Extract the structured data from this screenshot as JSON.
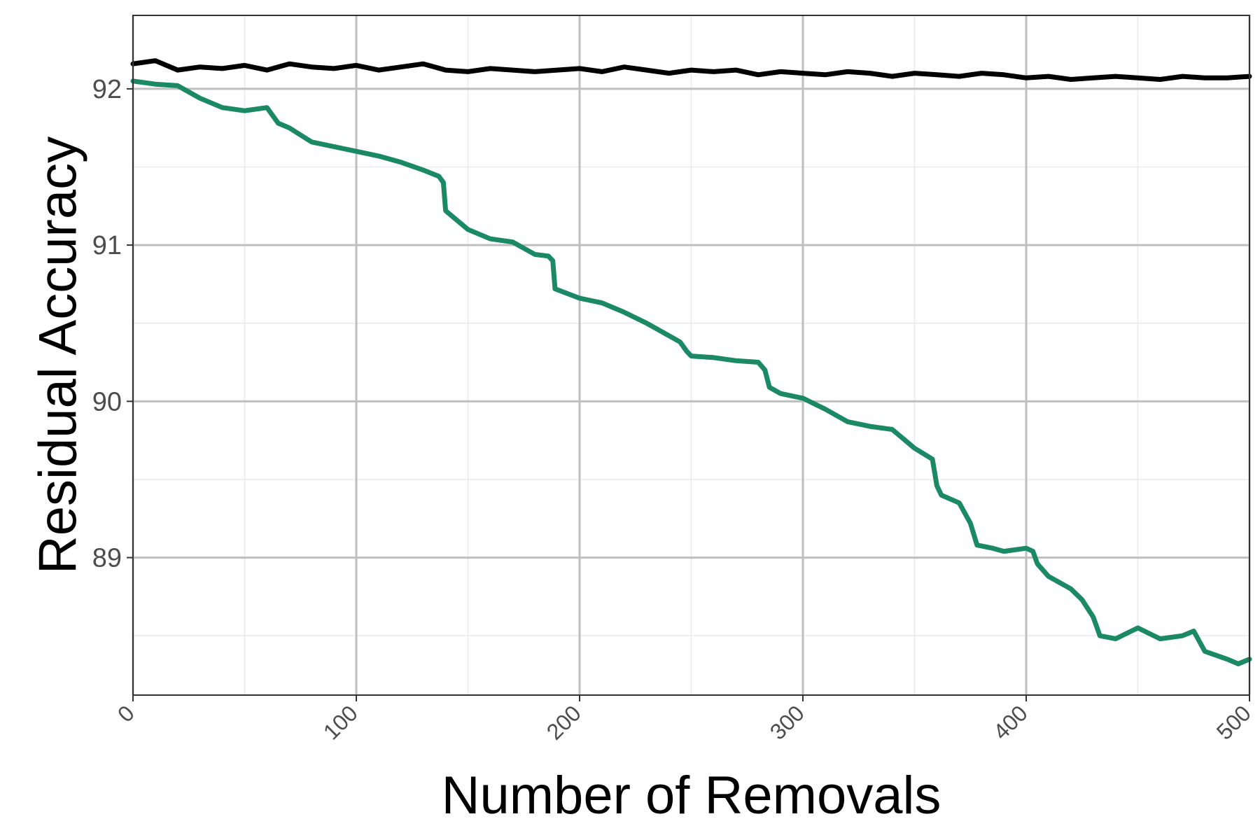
{
  "chart_data": {
    "type": "line",
    "title": "",
    "xlabel": "Number of Removals",
    "ylabel": "Residual Accuracy",
    "xlim": [
      0,
      500
    ],
    "ylim": [
      88.12,
      92.47
    ],
    "x_ticks": [
      0,
      100,
      200,
      300,
      400,
      500
    ],
    "x_tick_labels": [
      "0",
      "100",
      "200",
      "300",
      "400",
      "500"
    ],
    "y_ticks": [
      89,
      90,
      91,
      92
    ],
    "y_tick_labels": [
      "89",
      "90",
      "91",
      "92"
    ],
    "grid": true,
    "legend": "none",
    "series": [
      {
        "color": "#000000",
        "x": [
          0,
          10,
          20,
          30,
          40,
          50,
          60,
          70,
          80,
          90,
          100,
          110,
          120,
          130,
          140,
          150,
          160,
          170,
          180,
          190,
          200,
          210,
          220,
          230,
          240,
          250,
          260,
          270,
          280,
          290,
          300,
          310,
          320,
          330,
          340,
          350,
          360,
          370,
          380,
          390,
          400,
          410,
          420,
          430,
          440,
          450,
          460,
          470,
          480,
          490,
          500
        ],
        "y": [
          92.16,
          92.18,
          92.12,
          92.14,
          92.13,
          92.15,
          92.12,
          92.16,
          92.14,
          92.13,
          92.15,
          92.12,
          92.14,
          92.16,
          92.12,
          92.11,
          92.13,
          92.12,
          92.11,
          92.12,
          92.13,
          92.11,
          92.14,
          92.12,
          92.1,
          92.12,
          92.11,
          92.12,
          92.09,
          92.11,
          92.1,
          92.09,
          92.11,
          92.1,
          92.08,
          92.1,
          92.09,
          92.08,
          92.1,
          92.09,
          92.07,
          92.08,
          92.06,
          92.07,
          92.08,
          92.07,
          92.06,
          92.08,
          92.07,
          92.07,
          92.08
        ]
      },
      {
        "color": "#1b8a64",
        "x": [
          0,
          10,
          20,
          30,
          40,
          50,
          60,
          65,
          70,
          80,
          90,
          100,
          110,
          120,
          130,
          137,
          139,
          140,
          150,
          160,
          170,
          180,
          186,
          188,
          189,
          200,
          210,
          220,
          230,
          240,
          245,
          248,
          250,
          260,
          270,
          280,
          283,
          285,
          290,
          300,
          310,
          320,
          330,
          340,
          350,
          358,
          360,
          362,
          370,
          375,
          378,
          385,
          390,
          400,
          403,
          405,
          410,
          420,
          425,
          430,
          433,
          440,
          450,
          460,
          470,
          475,
          480,
          490,
          495,
          500
        ],
        "y": [
          92.05,
          92.03,
          92.02,
          91.94,
          91.88,
          91.86,
          91.88,
          91.78,
          91.75,
          91.66,
          91.63,
          91.6,
          91.57,
          91.53,
          91.48,
          91.44,
          91.4,
          91.22,
          91.1,
          91.04,
          91.02,
          90.94,
          90.93,
          90.9,
          90.72,
          90.66,
          90.63,
          90.57,
          90.5,
          90.42,
          90.38,
          90.32,
          90.29,
          90.28,
          90.26,
          90.25,
          90.2,
          90.09,
          90.05,
          90.02,
          89.95,
          89.87,
          89.84,
          89.82,
          89.7,
          89.63,
          89.46,
          89.4,
          89.35,
          89.22,
          89.08,
          89.06,
          89.04,
          89.06,
          89.04,
          88.96,
          88.88,
          88.8,
          88.73,
          88.62,
          88.5,
          88.48,
          88.55,
          88.48,
          88.5,
          88.53,
          88.4,
          88.35,
          88.32,
          88.35
        ]
      }
    ]
  }
}
